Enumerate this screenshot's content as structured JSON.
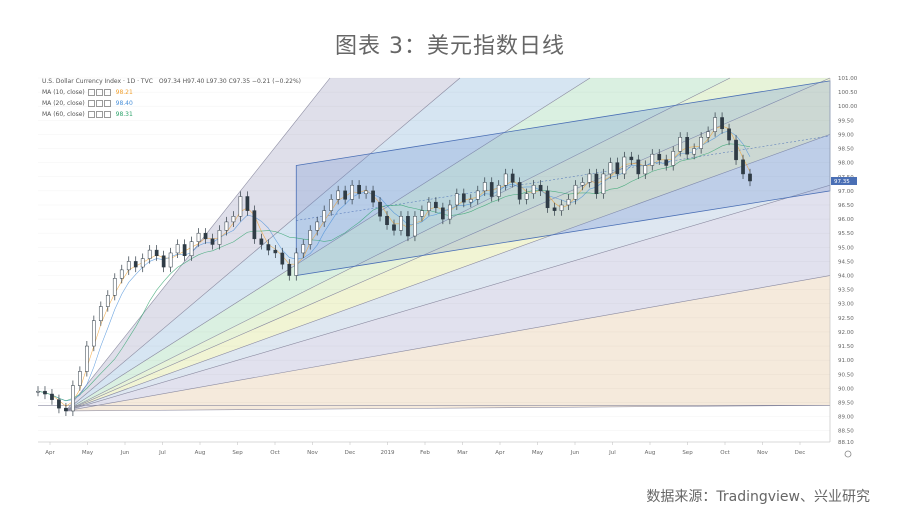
{
  "figure": {
    "title": "图表 3：美元指数日线",
    "source": "数据来源：Tradingview、兴业研究"
  },
  "legend_header": {
    "symbol": "U.S. Dollar Currency Index · 1D · TVC",
    "ohlc": "O97.34  H97.40  L97.30  C97.35  −0.21 (−0.22%)",
    "ma": [
      {
        "label": "MA (10, close)",
        "value": "98.21",
        "color": "#f0a030"
      },
      {
        "label": "MA (20, close)",
        "value": "98.40",
        "color": "#4a90d9"
      },
      {
        "label": "MA (60, close)",
        "value": "98.31",
        "color": "#2ea36b"
      }
    ]
  },
  "chart_data": {
    "type": "line",
    "title": "",
    "xlabel": "",
    "ylabel": "",
    "x_ticks": [
      "Apr",
      "May",
      "Jun",
      "Jul",
      "Aug",
      "Sep",
      "Oct",
      "Nov",
      "Dec",
      "2019",
      "Feb",
      "Mar",
      "Apr",
      "May",
      "Jun",
      "Jul",
      "Aug",
      "Sep",
      "Oct",
      "Nov",
      "Dec"
    ],
    "y_ticks": [
      "101.00",
      "100.50",
      "100.00",
      "99.50",
      "99.00",
      "98.50",
      "98.00",
      "97.50",
      "97.00",
      "96.50",
      "96.00",
      "95.50",
      "95.00",
      "94.50",
      "94.00",
      "93.50",
      "93.00",
      "92.50",
      "92.00",
      "91.50",
      "91.00",
      "90.50",
      "90.00",
      "89.50",
      "89.00",
      "88.50",
      "88.10"
    ],
    "ylim": [
      88.1,
      101.0
    ],
    "last_price_label": "97.35",
    "series": [
      {
        "values": [
          89.9,
          89.8,
          89.6,
          89.3,
          89.2,
          90.1,
          90.6,
          91.5,
          92.4,
          92.9,
          93.3,
          93.9,
          94.2,
          94.5,
          94.3,
          94.6,
          94.9,
          94.7,
          94.3,
          94.8,
          95.1,
          94.7,
          95.2,
          95.5,
          95.3,
          95.1,
          95.6,
          95.9,
          96.1,
          96.8,
          96.3,
          95.3,
          95.1,
          94.9,
          94.8,
          94.4,
          94.0,
          94.8,
          95.1,
          95.6,
          95.9,
          96.3,
          96.7,
          97.0,
          96.7,
          97.2,
          96.9,
          97.0,
          96.6,
          96.1,
          95.8,
          95.6,
          96.1,
          95.4,
          96.1,
          96.3,
          96.6,
          96.4,
          96.0,
          96.5,
          96.9,
          96.6,
          96.7,
          97.0,
          97.3,
          96.8,
          97.2,
          97.6,
          97.3,
          96.7,
          96.9,
          97.2,
          97.0,
          96.4,
          96.3,
          96.5,
          96.7,
          97.2,
          97.3,
          97.6,
          96.9,
          97.6,
          98.0,
          97.6,
          98.2,
          98.1,
          97.6,
          97.9,
          98.3,
          98.1,
          97.9,
          98.4,
          98.9,
          98.3,
          98.5,
          98.9,
          99.1,
          99.6,
          99.2,
          98.8,
          98.1,
          97.6,
          97.35
        ]
      }
    ],
    "annotations": [
      "Gann fan",
      "Parallel channel",
      "Moving averages 10/20/60"
    ]
  }
}
